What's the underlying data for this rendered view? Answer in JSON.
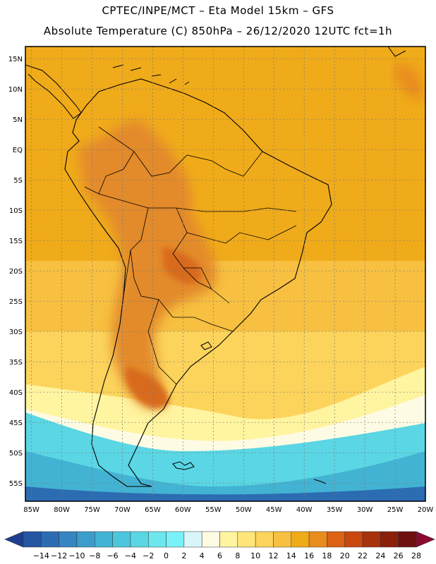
{
  "header": {
    "line1": "CPTEC/INPE/MCT –  Eta Model 15km – GFS",
    "line2": "Absolute Temperature (C) 850hPa – 26/12/2020 12UTC fct=1h"
  },
  "map": {
    "region": "South America",
    "lat_labels": [
      "15N",
      "10N",
      "5N",
      "EQ",
      "5S",
      "10S",
      "15S",
      "20S",
      "25S",
      "30S",
      "35S",
      "40S",
      "45S",
      "50S",
      "55S"
    ],
    "lon_labels": [
      "85W",
      "80W",
      "75W",
      "70W",
      "65W",
      "60W",
      "55W",
      "50W",
      "45W",
      "40W",
      "35W",
      "30W",
      "25W",
      "20W"
    ],
    "lat_range": [
      17,
      -58
    ],
    "lon_range": [
      -86,
      -20
    ]
  },
  "legend": {
    "labels": [
      "-14",
      "-12",
      "-10",
      "-8",
      "-6",
      "-4",
      "-2",
      "0",
      "2",
      "4",
      "6",
      "8",
      "10",
      "12",
      "14",
      "16",
      "18",
      "20",
      "22",
      "24",
      "26",
      "28"
    ],
    "colors": [
      "#1e3f8f",
      "#2456a2",
      "#2c6cb2",
      "#3585c2",
      "#3c9dcc",
      "#43b3d3",
      "#4cc6dc",
      "#5ad6e4",
      "#6ee6ee",
      "#78f2f8",
      "#d8f6fa",
      "#fefbe4",
      "#fff4a0",
      "#ffe57a",
      "#fcd45c",
      "#f7c040",
      "#f0ab1a",
      "#e98c1e",
      "#dc6214",
      "#c94810",
      "#a8320c",
      "#8a200a",
      "#6e1010",
      "#8c0a30"
    ]
  },
  "color_scale": {
    "land_interior": "#e38a2c",
    "hot_core": "#d86a1c",
    "warm": "#f0ab1a",
    "subtropical": "#f7c040",
    "temperate": "#fcd45c",
    "cool": "#fff4a0",
    "cold_sea": "#5ad6e4",
    "polar": "#2c6cb2",
    "coastline": "#000000"
  }
}
